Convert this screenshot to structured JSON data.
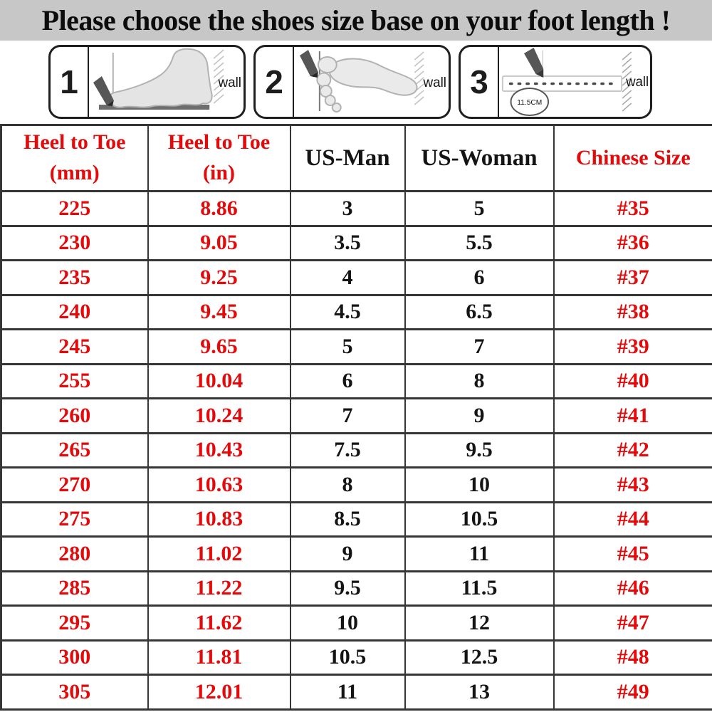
{
  "title": "Please choose the shoes size base on your foot length !",
  "steps": [
    {
      "number": "1",
      "wall_label": "wall"
    },
    {
      "number": "2",
      "wall_label": "wall"
    },
    {
      "number": "3",
      "wall_label": "wall",
      "ruler_note": "11.5CM"
    }
  ],
  "table": {
    "columns": [
      {
        "header_line1": "Heel to Toe",
        "header_line2": "(mm)",
        "color": "red"
      },
      {
        "header_line1": "Heel to Toe",
        "header_line2": "(in)",
        "color": "red"
      },
      {
        "header_line1": "US-Man",
        "header_line2": "",
        "color": "black"
      },
      {
        "header_line1": "US-Woman",
        "header_line2": "",
        "color": "black"
      },
      {
        "header_line1": "Chinese Size",
        "header_line2": "",
        "color": "red"
      }
    ],
    "rows": [
      [
        "225",
        "8.86",
        "3",
        "5",
        "#35"
      ],
      [
        "230",
        "9.05",
        "3.5",
        "5.5",
        "#36"
      ],
      [
        "235",
        "9.25",
        "4",
        "6",
        "#37"
      ],
      [
        "240",
        "9.45",
        "4.5",
        "6.5",
        "#38"
      ],
      [
        "245",
        "9.65",
        "5",
        "7",
        "#39"
      ],
      [
        "255",
        "10.04",
        "6",
        "8",
        "#40"
      ],
      [
        "260",
        "10.24",
        "7",
        "9",
        "#41"
      ],
      [
        "265",
        "10.43",
        "7.5",
        "9.5",
        "#42"
      ],
      [
        "270",
        "10.63",
        "8",
        "10",
        "#43"
      ],
      [
        "275",
        "10.83",
        "8.5",
        "10.5",
        "#44"
      ],
      [
        "280",
        "11.02",
        "9",
        "11",
        "#45"
      ],
      [
        "285",
        "11.22",
        "9.5",
        "11.5",
        "#46"
      ],
      [
        "295",
        "11.62",
        "10",
        "12",
        "#47"
      ],
      [
        "300",
        "11.81",
        "10.5",
        "12.5",
        "#48"
      ],
      [
        "305",
        "12.01",
        "11",
        "13",
        "#49"
      ]
    ]
  },
  "colors": {
    "accent_red": "#e20a0a",
    "title_background": "#c7c7c7",
    "table_border": "#363636"
  }
}
